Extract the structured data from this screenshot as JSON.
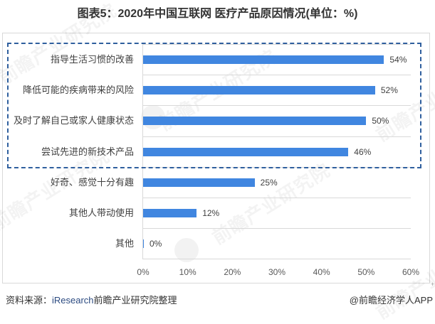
{
  "title": "图表5：2020年中国互联网 医疗产品原因情况(单位：%)",
  "chart_data": {
    "type": "bar",
    "orientation": "horizontal",
    "title": "图表5：2020年中国互联网 医疗产品原因情况(单位：%)",
    "xlabel": "",
    "ylabel": "",
    "categories": [
      "指导生活习惯的改善",
      "降低可能的疾病带来的风险",
      "及时了解自己或家人健康状态",
      "尝试先进的新技术产品",
      "好奇、感觉十分有趣",
      "其他人带动使用",
      "其他"
    ],
    "values": [
      54,
      52,
      50,
      46,
      25,
      12,
      0
    ],
    "value_labels": [
      "54%",
      "52%",
      "50%",
      "46%",
      "25%",
      "12%",
      "0%"
    ],
    "xlim": [
      0,
      60
    ],
    "x_ticks": [
      "0%",
      "10%",
      "20%",
      "30%",
      "40%",
      "50%",
      "60%"
    ],
    "grid": true,
    "legend": null,
    "bar_color": "#4086e0",
    "highlight_box": {
      "rows": [
        0,
        1,
        2,
        3
      ],
      "style": "dashed",
      "color": "#2f5f9e"
    }
  },
  "footer": {
    "source_label": "资料来源：",
    "source_org": "iResearch",
    "source_suffix": "前瞻产业研究院整理",
    "credit": "@前瞻经济学人APP"
  },
  "watermark": {
    "text": "前瞻产业研究院"
  },
  "colors": {
    "bar": "#4086e0",
    "highlight_border": "#2f5f9e",
    "grid": "#d9d9d9",
    "text": "#404040"
  }
}
